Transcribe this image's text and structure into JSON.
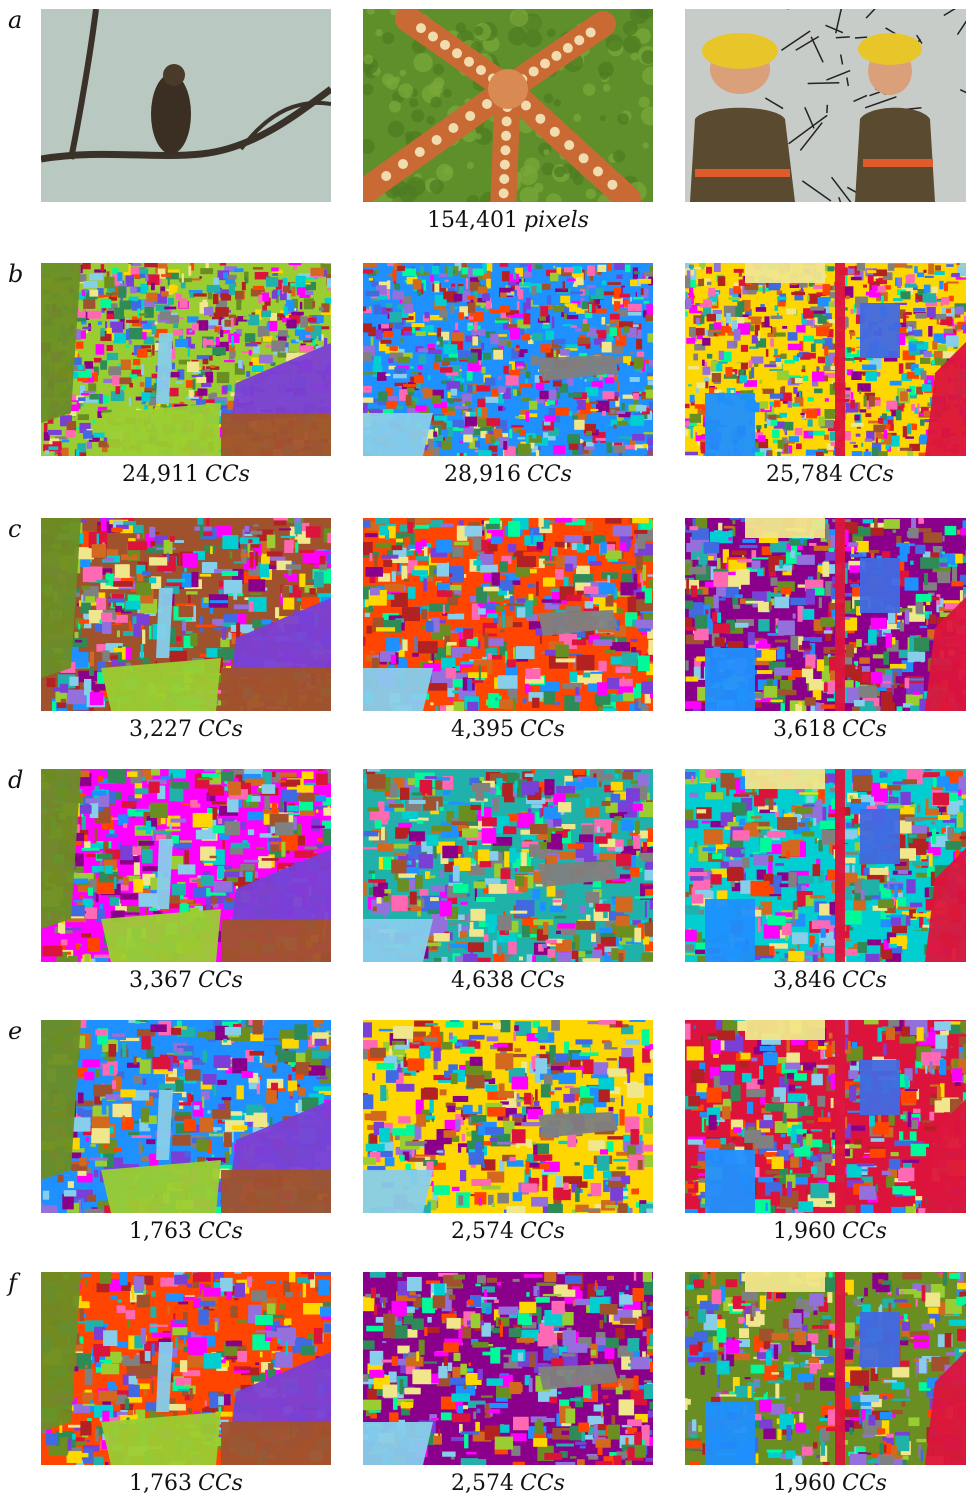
{
  "rows": [
    {
      "label": "a",
      "captions": [
        null,
        {
          "count": "154,401",
          "unit": "pixels"
        },
        null
      ]
    },
    {
      "label": "b",
      "captions": [
        {
          "count": "24,911",
          "unit": "CCs"
        },
        {
          "count": "28,916",
          "unit": "CCs"
        },
        {
          "count": "25,784",
          "unit": "CCs"
        }
      ]
    },
    {
      "label": "c",
      "captions": [
        {
          "count": "3,227",
          "unit": "CCs"
        },
        {
          "count": "4,395",
          "unit": "CCs"
        },
        {
          "count": "3,618",
          "unit": "CCs"
        }
      ]
    },
    {
      "label": "d",
      "captions": [
        {
          "count": "3,367",
          "unit": "CCs"
        },
        {
          "count": "4,638",
          "unit": "CCs"
        },
        {
          "count": "3,846",
          "unit": "CCs"
        }
      ]
    },
    {
      "label": "e",
      "captions": [
        {
          "count": "1,763",
          "unit": "CCs"
        },
        {
          "count": "2,574",
          "unit": "CCs"
        },
        {
          "count": "1,960",
          "unit": "CCs"
        }
      ]
    },
    {
      "label": "f",
      "captions": [
        {
          "count": "1,763",
          "unit": "CCs"
        },
        {
          "count": "2,574",
          "unit": "CCs"
        },
        {
          "count": "1,960",
          "unit": "CCs"
        }
      ]
    }
  ],
  "photos": [
    "bird-photo",
    "starfish-photo",
    "firefighters-photo"
  ],
  "colors": {
    "sky": "#b9c9c2",
    "algae": "#5f8f2a",
    "starfish": "#c96a35",
    "wall": "#c8ccc8",
    "helmet": "#e8c62a",
    "jacket": "#5a4a30"
  },
  "segment_palette": [
    "#7a3fd6",
    "#9acd32",
    "#a0522d",
    "#ff00ff",
    "#1e90ff",
    "#ff4500",
    "#20b2aa",
    "#ffd700",
    "#8b008b",
    "#00ced1",
    "#dc143c",
    "#6b8e23",
    "#4169e1",
    "#ff69b4",
    "#2e8b57",
    "#d2691e",
    "#9370db",
    "#00fa9a",
    "#b22222",
    "#87ceeb",
    "#808080",
    "#f0e68c"
  ]
}
